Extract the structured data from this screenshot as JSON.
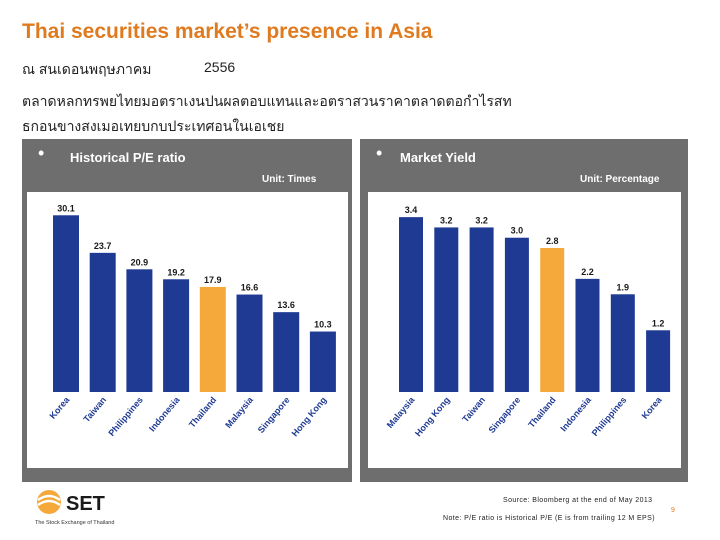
{
  "title": "Thai securities market’s presence in Asia",
  "subtitle": {
    "line1": "ณ สนเดอนพฤษภาคม",
    "year": "2556",
    "line2": "ตลาดหลกทรพยไทยมอตราเงนปนผลตอบแทนและอตราสวนราคาตลาดตอกำไรสท",
    "line3": "ธกอนขางสงเมอเทยบกบประเทศอนในเอเชย"
  },
  "left_panel": {
    "bullet": "•",
    "title": "Historical P/E ratio",
    "unit": "Unit: Times"
  },
  "right_panel": {
    "bullet": "•",
    "title": "Market Yield",
    "unit": "Unit: Percentage"
  },
  "colors": {
    "bar": "#1F3A93",
    "highlight": "#F4A93A",
    "title": "#E07A1F",
    "panel": "#6E6E6E"
  },
  "chart_data": [
    {
      "type": "bar",
      "title": "Historical P/E ratio",
      "unit": "Unit: Times",
      "categories": [
        "Korea",
        "Taiwan",
        "Philippines",
        "Indonesia",
        "Thailand",
        "Malaysia",
        "Singapore",
        "Hong Kong"
      ],
      "values": [
        30.1,
        23.7,
        20.9,
        19.2,
        17.9,
        16.6,
        13.6,
        10.3
      ],
      "labels": [
        "30.1",
        "23.7",
        "20.9",
        "19.2",
        "17.9",
        "16.6",
        "13.6",
        "10.3"
      ],
      "highlight": "Thailand",
      "ylim": [
        0,
        31
      ]
    },
    {
      "type": "bar",
      "title": "Market Yield",
      "unit": "Unit: Percentage",
      "categories": [
        "Malaysia",
        "Hong Kong",
        "Taiwan",
        "Singapore",
        "Thailand",
        "Indonesia",
        "Philippines",
        "Korea"
      ],
      "values": [
        3.4,
        3.2,
        3.2,
        3.0,
        2.8,
        2.2,
        1.9,
        1.2
      ],
      "labels": [
        "3.4",
        "3.2",
        "3.2",
        "3.0",
        "2.8",
        "2.2",
        "1.9",
        "1.2"
      ],
      "highlight": "Thailand",
      "ylim": [
        0,
        3.5
      ]
    }
  ],
  "footer": {
    "logo_text": "SET",
    "logo_tagline": "The Stock Exchange of Thailand",
    "source": "Source: Bloomberg at the end of May 2013",
    "note": "Note: P/E ratio is Historical P/E (E is from trailing 12 M EPS)",
    "page": "9"
  }
}
